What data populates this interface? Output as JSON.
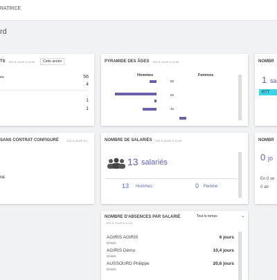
{
  "topbar": {
    "user": "RATRICE"
  },
  "page_title": "rd",
  "cards": {
    "ts": {
      "title": "TS",
      "updated": "· MIS À JOUR À 10:06",
      "select": "Cette année",
      "rows": [
        {
          "label": "es",
          "value": "56"
        },
        {
          "label": "",
          "value": "4"
        },
        {
          "label": "",
          "value": "1"
        },
        {
          "label": "",
          "value": "1"
        }
      ]
    },
    "pyramid": {
      "title": "PYRAMIDE DES ÂGES",
      "updated": "· MIS À JOUR À 10:06",
      "left": "Hommes",
      "right": "Femmes",
      "age_labels": [
        "55",
        "50",
        "45"
      ],
      "bars": [
        {
          "side": "left",
          "value": 1
        },
        {
          "side": "left",
          "value": 6
        },
        {
          "side": "left",
          "value": 0.3
        },
        {
          "side": "left",
          "value": 2
        },
        {
          "side": "right",
          "value": 1
        }
      ]
    },
    "nombre_top": {
      "title": "NOMBR",
      "big": "1",
      "big_unit": "sala",
      "tag": "RTT"
    },
    "sans_contrat": {
      "title": "SANS CONTRAT CONFIGURÉ",
      "updated": "· MIS À JOUR À 1",
      "item": "NE"
    },
    "salaries": {
      "title": "NOMBRE DE SALARIÉS",
      "updated": "· MIS À JOUR À 10:06",
      "count": "13",
      "count_unit": "salariés",
      "men_count": "13",
      "men": "Hommes",
      "women_count": "0",
      "women": "Femme"
    },
    "nombre_mid": {
      "title": "NOMBR",
      "big": "0",
      "big_unit": "jo",
      "line1": "En 0 se",
      "line2": "0 ab"
    },
    "absences": {
      "title": "NOMBRE D'ABSENCES PAR SALARIÉ",
      "updated": "· MIS À JOUR À 10:10",
      "select": "Tout le temps",
      "rows": [
        {
          "name": "AGIRIS AGIRIS",
          "days": "6 jours",
          "link": "Détails"
        },
        {
          "name": "AGIRIS Démo",
          "days": "10,4 jours",
          "link": "Détails"
        },
        {
          "name": "AUSSOURD Philippe",
          "days": "20,6 jours",
          "link": "Détails"
        }
      ]
    }
  }
}
